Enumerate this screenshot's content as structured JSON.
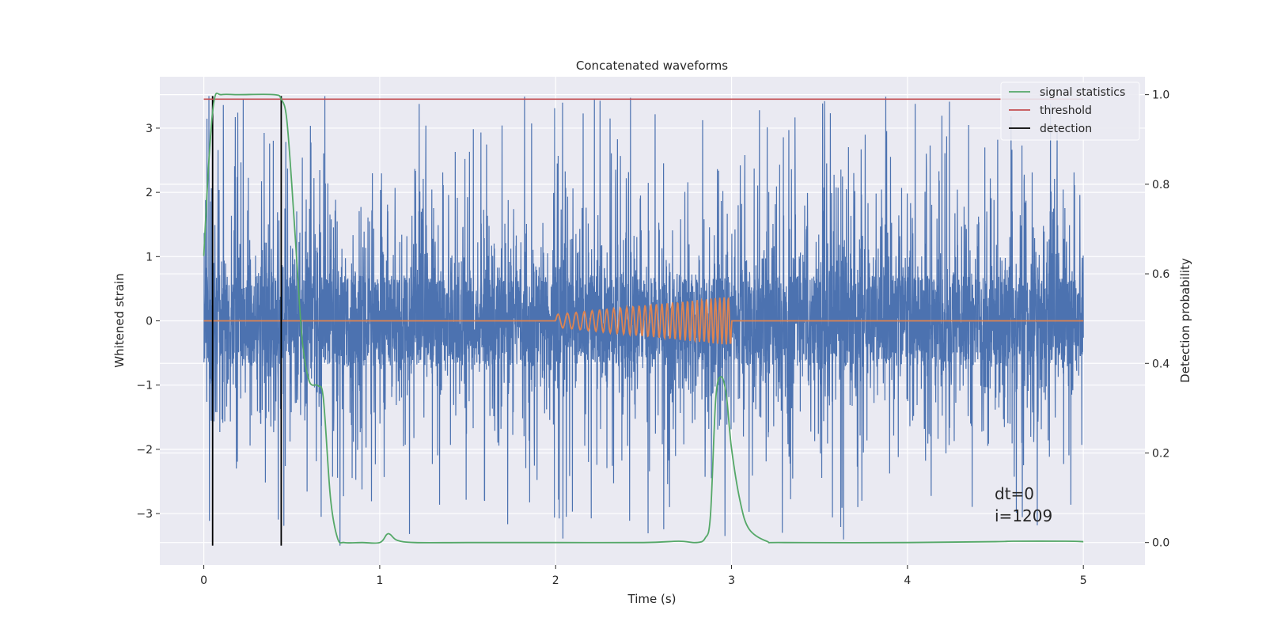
{
  "chart_data": {
    "type": "line",
    "title": "Concatenated waveforms",
    "xlabel": "Time (s)",
    "ylabel": "Whitened strain",
    "y2label": "Detection probability",
    "xlim": [
      -0.25,
      5.35
    ],
    "ylim": [
      -3.8,
      3.8
    ],
    "y2lim": [
      -0.05,
      1.04
    ],
    "x_ticks": [
      0,
      1,
      2,
      3,
      4,
      5
    ],
    "y_ticks": [
      -3,
      -2,
      -1,
      0,
      1,
      2,
      3
    ],
    "y2_ticks": [
      0.0,
      0.2,
      0.4,
      0.6,
      0.8,
      1.0
    ],
    "x_tick_labels": [
      "0",
      "1",
      "2",
      "3",
      "4",
      "5"
    ],
    "y_tick_labels": [
      "−3",
      "−2",
      "−1",
      "0",
      "1",
      "2",
      "3"
    ],
    "y2_tick_labels": [
      "0.0",
      "0.2",
      "0.4",
      "0.6",
      "0.8",
      "1.0"
    ],
    "grid": true,
    "legend_position": "top-right",
    "colors": {
      "background": "#eaeaf2",
      "grid": "#ffffff",
      "strain": "#4c72b0",
      "injection": "#dd8452",
      "signal_statistics": "#55a868",
      "threshold": "#c44e52",
      "detection": "#000000"
    },
    "series": [
      {
        "name": "strain",
        "axis": "left",
        "x_range": [
          0,
          5
        ],
        "style": "noise",
        "core_amplitude": 0.7,
        "spike_amplitude": 3.5
      },
      {
        "name": "injection",
        "axis": "left",
        "x_range": [
          0,
          5
        ],
        "chirp": {
          "start": 2.0,
          "end": 3.0,
          "amp_start": 0.1,
          "amp_end": 0.38
        }
      },
      {
        "name": "signal statistics",
        "axis": "right",
        "x": [
          0.0,
          0.03,
          0.06,
          0.1,
          0.2,
          0.4,
          0.44,
          0.47,
          0.5,
          0.53,
          0.56,
          0.6,
          0.65,
          0.68,
          0.72,
          0.76,
          0.8,
          0.9,
          1.0,
          1.04,
          1.06,
          1.1,
          1.2,
          1.5,
          2.0,
          2.5,
          2.7,
          2.8,
          2.85,
          2.88,
          2.91,
          2.94,
          2.97,
          3.0,
          3.05,
          3.1,
          3.2,
          3.3,
          4.0,
          4.5,
          4.6,
          4.9,
          5.0
        ],
        "y": [
          0.64,
          0.86,
          0.99,
          1.0,
          1.0,
          1.0,
          0.99,
          0.95,
          0.8,
          0.62,
          0.45,
          0.36,
          0.35,
          0.32,
          0.1,
          0.01,
          0.0,
          0.0,
          0.0,
          0.018,
          0.018,
          0.005,
          0.0,
          0.0,
          0.0,
          0.0,
          0.003,
          0.0,
          0.01,
          0.06,
          0.32,
          0.37,
          0.33,
          0.21,
          0.09,
          0.03,
          0.003,
          0.0,
          0.0,
          0.002,
          0.003,
          0.003,
          0.002
        ]
      },
      {
        "name": "threshold",
        "axis": "right",
        "x": [
          0,
          5
        ],
        "y": [
          0.99,
          0.99
        ]
      },
      {
        "name": "detection",
        "axis": "left",
        "style": "vertical-lines",
        "x": [
          0.05,
          0.44
        ]
      }
    ],
    "legend": [
      "signal statistics",
      "threshold",
      "detection"
    ],
    "annotations": [
      "dt=0",
      "i=1209"
    ]
  }
}
